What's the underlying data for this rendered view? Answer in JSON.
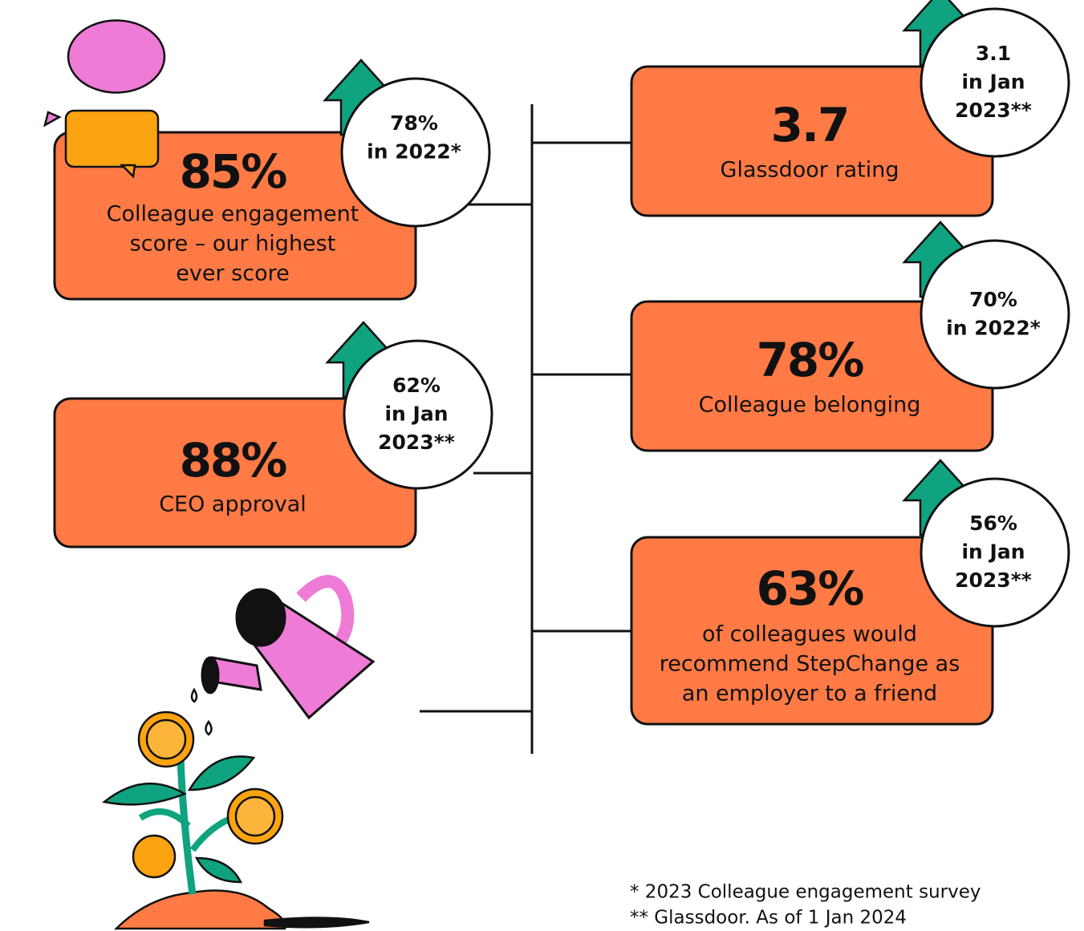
{
  "cards": [
    {
      "value": "85%",
      "label": [
        "Colleague engagement",
        "score – our highest",
        "ever score"
      ],
      "comparison": [
        "78%",
        "in 2022*"
      ]
    },
    {
      "value": "88%",
      "label": [
        "CEO approval"
      ],
      "comparison": [
        "62%",
        "in Jan",
        "2023**"
      ]
    },
    {
      "value": "3.7",
      "label": [
        "Glassdoor rating"
      ],
      "comparison": [
        "3.1",
        "in Jan",
        "2023**"
      ]
    },
    {
      "value": "78%",
      "label": [
        "Colleague belonging"
      ],
      "comparison": [
        "70%",
        "in 2022*"
      ]
    },
    {
      "value": "63%",
      "label": [
        "of colleagues would",
        "recommend StepChange as",
        "an employer to a friend"
      ],
      "comparison": [
        "56%",
        "in Jan",
        "2023**"
      ]
    }
  ],
  "footnotes": [
    "* 2023 Colleague engagement survey",
    "** Glassdoor. As of 1 Jan 2024"
  ]
}
